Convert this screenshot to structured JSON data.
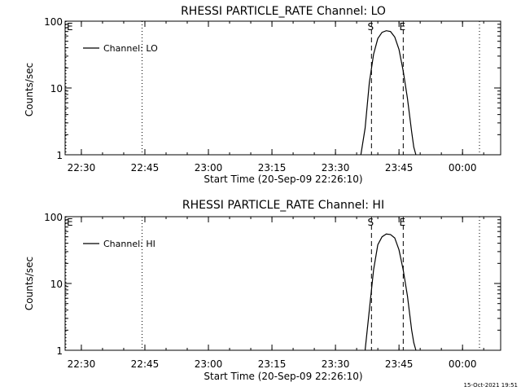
{
  "footer": {
    "timestamp": "15-Oct-2021 19:51"
  },
  "style": {
    "background": "#ffffff",
    "ink": "#000000"
  },
  "chart_data": [
    {
      "type": "line",
      "title": "RHESSI PARTICLE_RATE Channel: LO",
      "xlabel": "Start Time (20-Sep-09 22:26:10)",
      "ylabel": "Counts/sec",
      "yscale": "log",
      "ylim": [
        1,
        100
      ],
      "xlim": [
        "22:26:10",
        "00:09:00"
      ],
      "x_ticks": [
        "22:30",
        "22:45",
        "23:00",
        "23:15",
        "23:30",
        "23:45",
        "00:00"
      ],
      "y_ticks": [
        "1",
        "10",
        "100"
      ],
      "legend": {
        "placement": "top-left",
        "entries": [
          "Channel: LO"
        ]
      },
      "markers": [
        {
          "label": "E",
          "time": "22:26:10",
          "style": "dotted"
        },
        {
          "label": "",
          "time": "22:44:20",
          "style": "dotted"
        },
        {
          "label": "S",
          "time": "23:38:30",
          "style": "dashed"
        },
        {
          "label": "E",
          "time": "23:46:00",
          "style": "dashed"
        },
        {
          "label": "",
          "time": "00:04:00",
          "style": "dotted"
        }
      ],
      "series": [
        {
          "name": "Channel: LO",
          "x": [
            "23:36:00",
            "23:37:00",
            "23:38:00",
            "23:39:00",
            "23:40:00",
            "23:41:00",
            "23:42:00",
            "23:43:00",
            "23:44:00",
            "23:45:00",
            "23:46:00",
            "23:47:00",
            "23:48:00",
            "23:48:30",
            "23:49:00"
          ],
          "y": [
            1,
            2.5,
            12,
            32,
            55,
            68,
            72,
            70,
            58,
            38,
            18,
            7,
            2.2,
            1.3,
            1
          ]
        }
      ]
    },
    {
      "type": "line",
      "title": "RHESSI PARTICLE_RATE Channel: HI",
      "xlabel": "Start Time (20-Sep-09 22:26:10)",
      "ylabel": "Counts/sec",
      "yscale": "log",
      "ylim": [
        1,
        100
      ],
      "xlim": [
        "22:26:10",
        "00:09:00"
      ],
      "x_ticks": [
        "22:30",
        "22:45",
        "23:00",
        "23:15",
        "23:30",
        "23:45",
        "00:00"
      ],
      "y_ticks": [
        "1",
        "10",
        "100"
      ],
      "legend": {
        "placement": "top-left",
        "entries": [
          "Channel: HI"
        ]
      },
      "markers": [
        {
          "label": "E",
          "time": "22:26:10",
          "style": "dotted"
        },
        {
          "label": "",
          "time": "22:44:20",
          "style": "dotted"
        },
        {
          "label": "S",
          "time": "23:38:30",
          "style": "dashed"
        },
        {
          "label": "E",
          "time": "23:46:00",
          "style": "dashed"
        },
        {
          "label": "",
          "time": "00:04:00",
          "style": "dotted"
        }
      ],
      "series": [
        {
          "name": "Channel: HI",
          "x": [
            "23:37:00",
            "23:38:00",
            "23:39:00",
            "23:40:00",
            "23:41:00",
            "23:42:00",
            "23:43:00",
            "23:44:00",
            "23:45:00",
            "23:46:00",
            "23:47:00",
            "23:48:00",
            "23:48:30",
            "23:49:00"
          ],
          "y": [
            1,
            4,
            16,
            38,
            50,
            55,
            54,
            48,
            32,
            16,
            6.5,
            2,
            1.3,
            1
          ]
        }
      ]
    }
  ]
}
